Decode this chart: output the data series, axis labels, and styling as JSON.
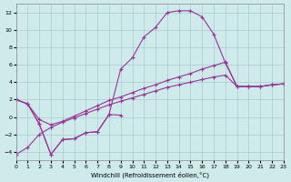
{
  "xlabel": "Windchill (Refroidissement éolien,°C)",
  "x_ticks": [
    0,
    1,
    2,
    3,
    4,
    5,
    6,
    7,
    8,
    9,
    10,
    11,
    12,
    13,
    14,
    15,
    16,
    17,
    18,
    19,
    20,
    21,
    22,
    23
  ],
  "ylim": [
    -5.0,
    13.0
  ],
  "xlim": [
    0,
    23
  ],
  "yticks": [
    -4,
    -2,
    0,
    2,
    4,
    6,
    8,
    10,
    12
  ],
  "background_color": "#ceeaea",
  "grid_color": "#a8cccc",
  "line_color": "#993399",
  "curve_main_x": [
    0,
    1,
    2,
    3,
    4,
    5,
    6,
    7,
    8,
    9,
    10,
    11,
    12,
    13,
    14,
    15,
    16,
    17,
    18,
    19,
    20,
    21,
    22,
    23
  ],
  "curve_main_y": [
    2.0,
    1.5,
    -0.8,
    -4.3,
    -2.6,
    -2.5,
    -1.8,
    -1.7,
    0.3,
    5.5,
    6.8,
    9.2,
    10.3,
    12.0,
    12.2,
    12.2,
    11.5,
    9.5,
    6.2,
    3.5,
    3.5,
    3.5,
    3.7,
    3.8
  ],
  "curve_diag1_x": [
    0,
    1,
    2,
    3,
    4,
    5,
    6,
    7,
    8,
    9,
    10,
    11,
    12,
    13,
    14,
    15,
    16,
    17,
    18,
    19,
    20,
    21,
    22,
    23
  ],
  "curve_diag1_y": [
    2.0,
    1.5,
    -0.3,
    -0.9,
    -0.5,
    0.1,
    0.7,
    1.3,
    1.9,
    2.3,
    2.8,
    3.3,
    3.7,
    4.2,
    4.6,
    5.0,
    5.5,
    5.9,
    6.3,
    3.5,
    3.5,
    3.5,
    3.7,
    3.8
  ],
  "curve_diag2_x": [
    0,
    1,
    2,
    3,
    4,
    5,
    6,
    7,
    8,
    9,
    10,
    11,
    12,
    13,
    14,
    15,
    16,
    17,
    18,
    19,
    20,
    21,
    22,
    23
  ],
  "curve_diag2_y": [
    -4.3,
    -3.5,
    -2.0,
    -1.2,
    -0.6,
    -0.1,
    0.4,
    0.9,
    1.4,
    1.8,
    2.2,
    2.6,
    3.0,
    3.4,
    3.7,
    4.0,
    4.3,
    4.6,
    4.8,
    3.5,
    3.5,
    3.5,
    3.7,
    3.8
  ],
  "curve_short_x": [
    0,
    1,
    2,
    3,
    4,
    5,
    6,
    7,
    8,
    9
  ],
  "curve_short_y": [
    2.0,
    1.5,
    -0.8,
    -4.3,
    -2.6,
    -2.5,
    -1.8,
    -1.7,
    0.3,
    0.2
  ]
}
